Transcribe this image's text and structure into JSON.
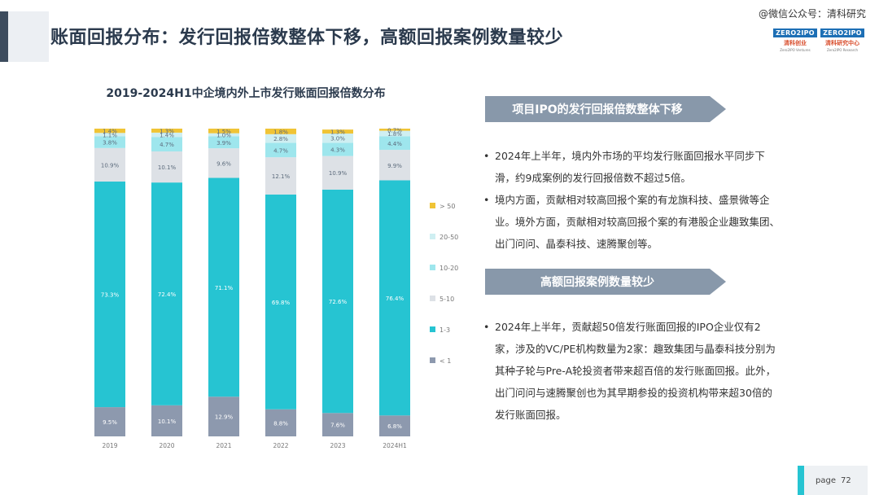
{
  "header": {
    "title": "账面回报分布：发行回报倍数整体下移，高额回报案例数量较少",
    "watermark": "@微信公众号：清科研究",
    "logos": [
      {
        "mark": "ZERO2IPO",
        "name": "清科创业",
        "sub": "Zero2IPO Ventures"
      },
      {
        "mark": "ZERO2IPO",
        "name": "清科研究中心",
        "sub": "Zero2IPO Research"
      }
    ]
  },
  "sections": [
    {
      "heading": "项目IPO的发行回报倍数整体下移",
      "bullets": [
        "2024年上半年，境内外市场的平均发行账面回报水平同步下滑，约9成案例的发行回报倍数不超过5倍。",
        "境内方面，贡献相对较高回报个案的有龙旗科技、盛景微等企业。境外方面，贡献相对较高回报个案的有港股企业趣致集团、出门问问、晶泰科技、速腾聚创等。"
      ]
    },
    {
      "heading": "高额回报案例数量较少",
      "bullets": [
        "2024年上半年，贡献超50倍发行账面回报的IPO企业仅有2家，涉及的VC/PE机构数量为2家：趣致集团与晶泰科技分别为其种子轮与Pre-A轮投资者带来超百倍的发行账面回报。此外，出门问问与速腾聚创也为其早期参投的投资机构带来超30倍的发行账面回报。"
      ]
    }
  ],
  "chart_data": {
    "type": "bar",
    "stacked": true,
    "title": "2019-2024H1中企境内外上市发行账面回报倍数分布",
    "categories": [
      "2019",
      "2020",
      "2021",
      "2022",
      "2023",
      "2024H1"
    ],
    "ylim": [
      0,
      100
    ],
    "legend_position": "right",
    "series": [
      {
        "name": "< 1",
        "color": "#8d99ae",
        "values": [
          9.5,
          10.1,
          12.9,
          8.8,
          7.6,
          6.8
        ],
        "labels": [
          "9.5%",
          "10.1%",
          "12.9%",
          "8.8%",
          "7.6%",
          "6.8%"
        ]
      },
      {
        "name": "1-3",
        "color": "#26c4d2",
        "values": [
          73.3,
          72.4,
          71.1,
          69.8,
          72.6,
          76.4
        ],
        "labels": [
          "73.3%",
          "72.4%",
          "71.1%",
          "69.8%",
          "72.6%",
          "76.4%"
        ]
      },
      {
        "name": "5-10",
        "color": "#dde1e6",
        "values": [
          10.9,
          10.1,
          9.6,
          12.1,
          10.9,
          9.9
        ],
        "labels": [
          "10.9%",
          "10.1%",
          "9.6%",
          "12.1%",
          "10.9%",
          "9.9%"
        ]
      },
      {
        "name": "10-20",
        "color": "#9ee6ed",
        "values": [
          3.8,
          4.7,
          3.9,
          4.7,
          4.3,
          4.4
        ],
        "labels": [
          "3.8%",
          "4.7%",
          "3.9%",
          "4.7%",
          "4.3%",
          "4.4%"
        ]
      },
      {
        "name": "20-50",
        "color": "#cfeff2",
        "values": [
          1.1,
          1.4,
          1.0,
          2.8,
          3.0,
          1.8
        ],
        "labels": [
          "1.1%",
          "1.4%",
          "1.0%",
          "2.8%",
          "3.0%",
          "1.8%"
        ]
      },
      {
        "name": "> 50",
        "color": "#f0c436",
        "values": [
          1.4,
          1.3,
          1.5,
          1.8,
          1.3,
          0.7
        ],
        "labels": [
          "1.4%",
          "1.3%",
          "1.5%",
          "1.8%",
          "1.3%",
          "0.7%"
        ]
      }
    ]
  },
  "footer": {
    "label": "page",
    "number": "72"
  }
}
